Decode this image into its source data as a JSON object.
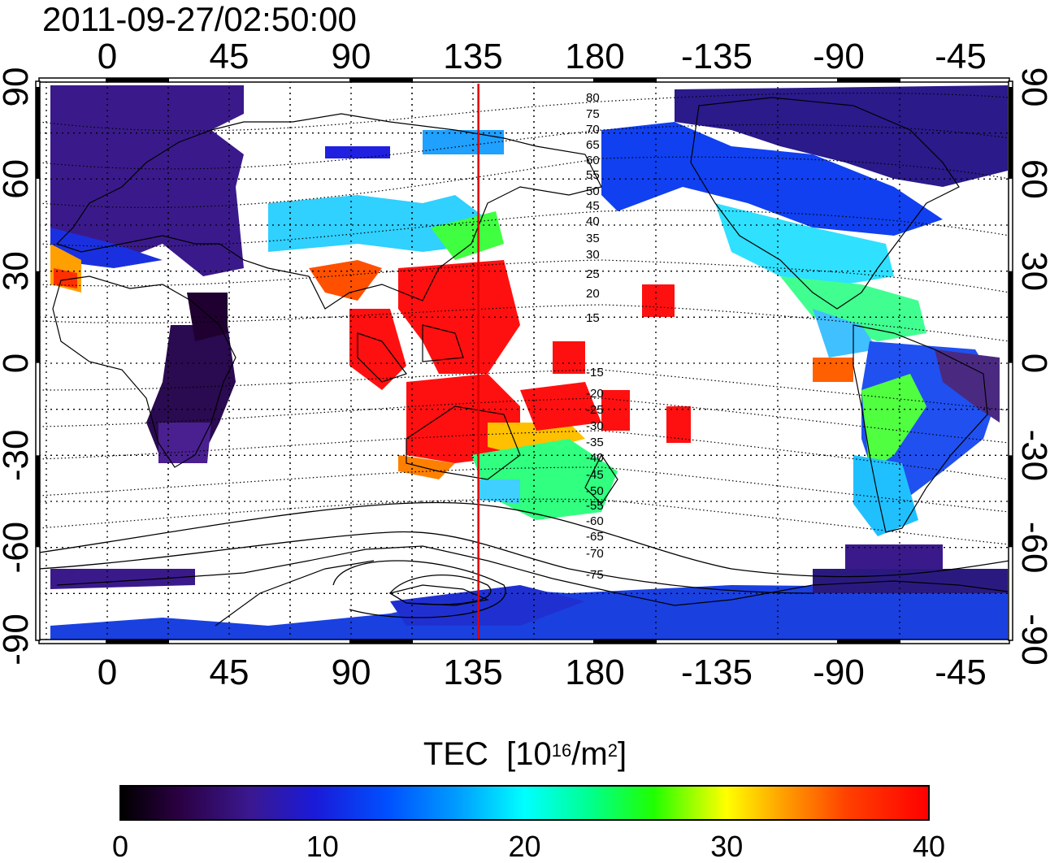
{
  "timestamp": "2011-09-27/02:50:00",
  "map": {
    "longitude_ticks": [
      "0",
      "45",
      "90",
      "135",
      "180",
      "-135",
      "-90",
      "-45"
    ],
    "latitude_ticks": [
      "90",
      "60",
      "30",
      "0",
      "-30",
      "-60",
      "-90"
    ],
    "contour_labels": [
      "80",
      "75",
      "70",
      "65",
      "60",
      "55",
      "50",
      "45",
      "40",
      "35",
      "30",
      "25",
      "20",
      "15",
      "-15",
      "-20",
      "-25",
      "-30",
      "-35",
      "-40",
      "-45",
      "-50",
      "-55",
      "-60",
      "-65",
      "-70",
      "-75"
    ],
    "marker_longitude": 137,
    "marker_color": "#e00000",
    "grid": "dotted"
  },
  "colorbar": {
    "title": "TEC",
    "unit_prefix": "[10",
    "unit_exp": "16",
    "unit_mid": "/m",
    "unit_exp2": "2",
    "unit_suffix": "]",
    "ticks": [
      "0",
      "10",
      "20",
      "30",
      "40"
    ],
    "range": [
      0,
      40
    ],
    "colors": [
      "#000000",
      "#3a1890",
      "#0050ff",
      "#00ffff",
      "#20ff00",
      "#ffff00",
      "#ff0000"
    ]
  }
}
